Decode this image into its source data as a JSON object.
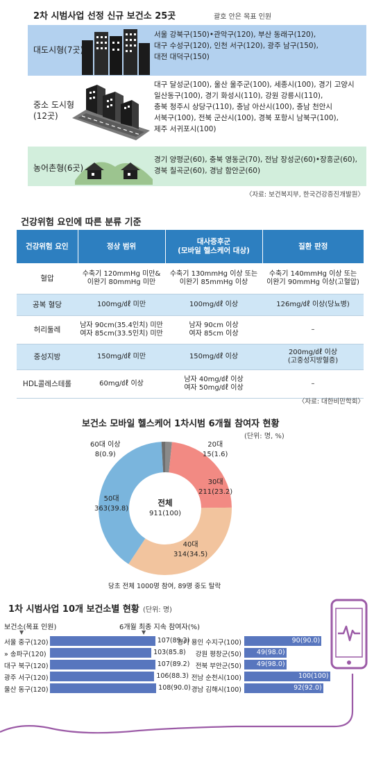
{
  "section1": {
    "title": "2차 시범사업 선정 신규 보건소 25곳",
    "note": "괄호 안은 목표 인원",
    "groups": [
      {
        "label": "대도시형(7곳)",
        "lines": [
          "서울 강북구(150)•관악구(120), 부산 동래구(120),",
          "대구 수성구(120), 인천 서구(120), 광주 남구(150),",
          "대전 대덕구(150)"
        ]
      },
      {
        "label_line1": "중소 도시형",
        "label_line2": "(12곳)",
        "lines": [
          "대구 달성군(100), 울산 울주군(100), 세종시(100), 경기 고양시",
          "일산동구(100), 경기 화성시(110), 강원 강릉시(110),",
          "충북 청주시 상당구(110), 충남 아산시(100), 충남 천안시",
          "서북구(100), 전북 군산시(100), 경북 포항시 남북구(100),",
          "제주 서귀포시(100)"
        ]
      },
      {
        "label": "농어촌형(6곳)",
        "lines": [
          "경기 양평군(60), 충북 영동군(70), 전남 장성군(60)•장흥군(60),",
          "경북 칠곡군(60), 경남 함안군(60)"
        ]
      }
    ],
    "source": "〈자료: 보건복지부, 한국건강증진개발원〉"
  },
  "section2": {
    "title": "건강위험 요인에 따른 분류 기준",
    "headers": [
      "건강위험 요인",
      "정상 범위",
      "대사증후군\n(모바일 헬스케어 대상)",
      "질환 판정"
    ],
    "rows": [
      [
        "혈압",
        "수축기 120mmHg 미만&\n이완기 80mmHg 미만",
        "수축기 130mmHg 이상 또는\n이완기 85mmHg 이상",
        "수축기 140mmHg 이상 또는\n이완기 90mmHg 이상(고혈압)"
      ],
      [
        "공복 혈당",
        "100mg/㎗ 미만",
        "100mg/㎗ 이상",
        "126mg/㎗ 이상(당뇨병)"
      ],
      [
        "허리둘레",
        "남자 90cm(35.4인치) 미만\n여자 85cm(33.5인치) 미만",
        "남자 90cm 이상\n여자 85cm 이상",
        "–"
      ],
      [
        "중성지방",
        "150mg/㎗ 미만",
        "150mg/㎗ 이상",
        "200mg/㎗ 이상\n(고중성지방혈증)"
      ],
      [
        "HDL콜레스테롤",
        "60mg/㎗ 이상",
        "남자 40mg/㎗ 이상\n여자 50mg/㎗ 이상",
        "–"
      ]
    ],
    "source": "〈자료: 대한비만학회〉"
  },
  "section3": {
    "title": "보건소 모바일 헬스케어 1차시범 6개월 참여자 현황",
    "unit": "(단위: 명, %)",
    "center_label": "전체",
    "center_value": "911(100)",
    "footnote": "당초 전체 1000명 참여, 89명 중도 탈락",
    "colors": {
      "20대": "#8a8a8a",
      "30대": "#f28a83",
      "40대": "#f2c49e",
      "50대": "#7ab5dd",
      "60대 이상": "#6e6e6e"
    }
  },
  "chart_data": [
    {
      "type": "pie",
      "title": "보건소 모바일 헬스케어 1차시범 6개월 참여자 현황",
      "unit": "(단위: 명, %)",
      "slices": [
        {
          "label": "20대",
          "value": 15,
          "value_label": "15(1.6)",
          "color": "#8a8a8a"
        },
        {
          "label": "30대",
          "value": 211,
          "value_label": "211(23.2)",
          "color": "#f28a83"
        },
        {
          "label": "40대",
          "value": 314,
          "value_label": "314(34.5)",
          "color": "#f2c49e"
        },
        {
          "label": "50대",
          "value": 363,
          "value_label": "363(39.8)",
          "color": "#7ab5dd"
        },
        {
          "label": "60대 이상",
          "value": 8,
          "value_label": "8(0.9)",
          "color": "#6e6e6e"
        }
      ]
    },
    {
      "type": "bar",
      "title": "1차 시범사업 10개 보건소별 현황",
      "unit": "(단위: 명)",
      "left_header": "보건소(목표 인원)",
      "value_header": "6개월 최종 지속 참여자(%)",
      "categories": [
        "서울 중구(120)",
        "송파구(120)",
        "대구 북구(120)",
        "광주 서구(120)",
        "울산 동구(120)",
        "경기 용인 수지구(100)",
        "강원 평창군(50)",
        "전북 부안군(50)",
        "전남 순천시(100)",
        "경남 김해시(100)"
      ],
      "values": [
        107,
        103,
        107,
        106,
        108,
        90,
        49,
        49,
        100,
        92
      ],
      "value_labels": [
        "107(89.2)",
        "103(85.8)",
        "107(89.2)",
        "106(88.3)",
        "108(90.0)",
        "90(90.0)",
        "49(98.0)",
        "49(98.0)",
        "100(100)",
        "92(92.0)"
      ],
      "color": "#5876be"
    }
  ]
}
